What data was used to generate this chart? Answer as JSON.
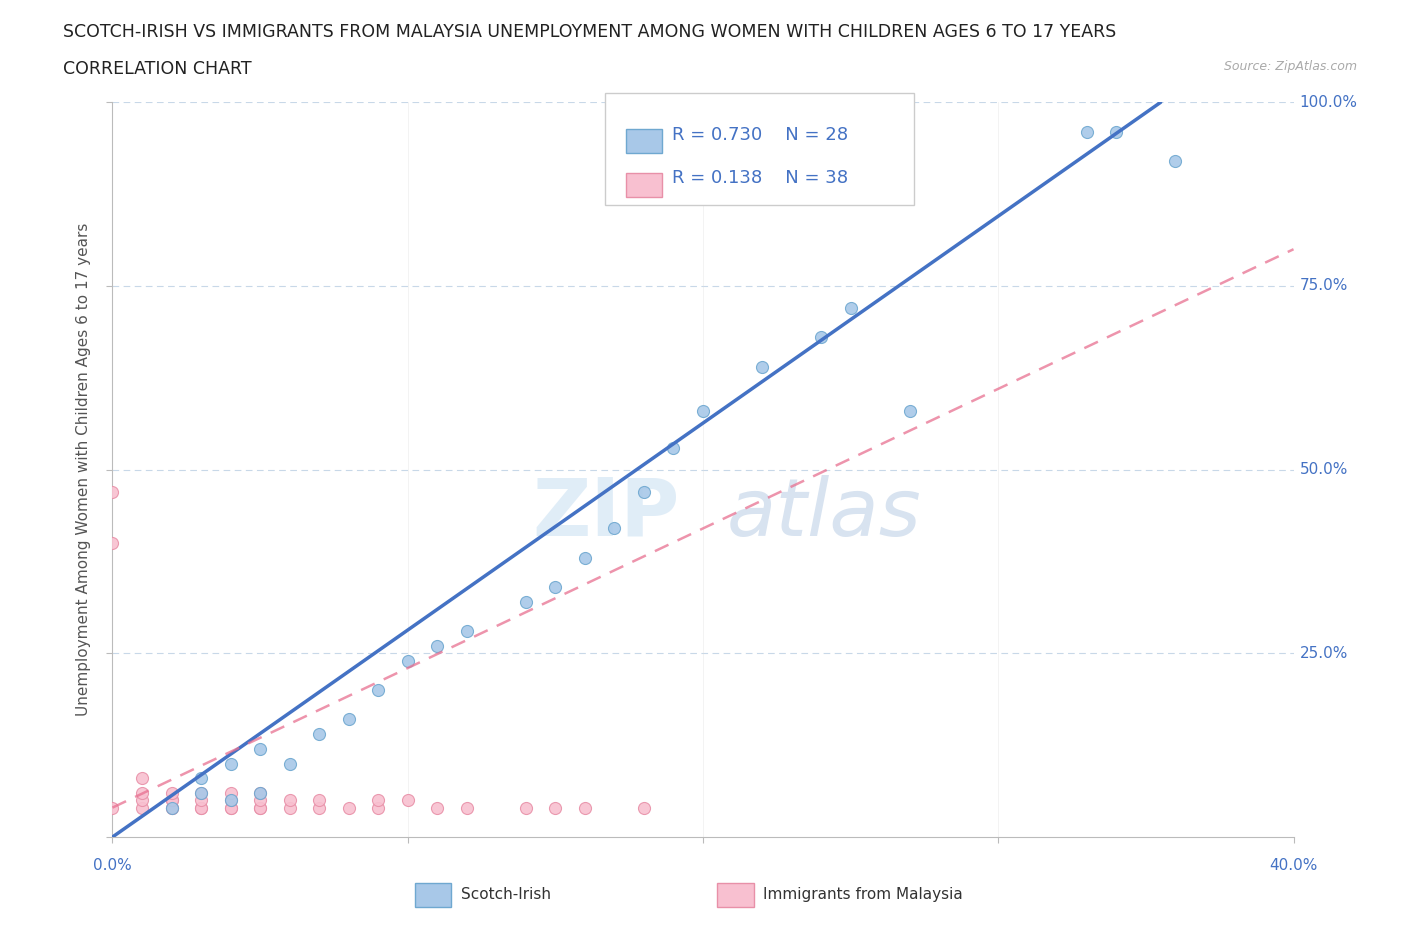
{
  "title_line1": "SCOTCH-IRISH VS IMMIGRANTS FROM MALAYSIA UNEMPLOYMENT AMONG WOMEN WITH CHILDREN AGES 6 TO 17 YEARS",
  "title_line2": "CORRELATION CHART",
  "source_text": "Source: ZipAtlas.com",
  "ylabel": "Unemployment Among Women with Children Ages 6 to 17 years",
  "xlim": [
    0.0,
    0.4
  ],
  "ylim": [
    0.0,
    1.0
  ],
  "xticks": [
    0.0,
    0.1,
    0.2,
    0.3,
    0.4
  ],
  "xticklabels": [
    "0.0%",
    "",
    "",
    "",
    "40.0%"
  ],
  "yticks": [
    0.0,
    0.25,
    0.5,
    0.75,
    1.0
  ],
  "yticklabels": [
    "",
    "25.0%",
    "50.0%",
    "75.0%",
    "100.0%"
  ],
  "scotch_irish": {
    "x": [
      0.02,
      0.03,
      0.03,
      0.04,
      0.04,
      0.05,
      0.05,
      0.06,
      0.07,
      0.08,
      0.09,
      0.1,
      0.11,
      0.12,
      0.14,
      0.15,
      0.16,
      0.17,
      0.18,
      0.19,
      0.2,
      0.22,
      0.24,
      0.25,
      0.27,
      0.33,
      0.34,
      0.36
    ],
    "y": [
      0.04,
      0.06,
      0.08,
      0.05,
      0.1,
      0.06,
      0.12,
      0.1,
      0.14,
      0.16,
      0.2,
      0.24,
      0.26,
      0.28,
      0.32,
      0.34,
      0.38,
      0.42,
      0.47,
      0.53,
      0.58,
      0.64,
      0.68,
      0.72,
      0.58,
      0.96,
      0.96,
      0.92
    ],
    "color": "#a8c8e8",
    "edge_color": "#6fa8d0",
    "R": 0.73,
    "N": 28,
    "trend_color": "#4472c4",
    "trend_x": [
      0.0,
      0.355
    ],
    "trend_y": [
      0.0,
      1.0
    ]
  },
  "malaysia": {
    "x": [
      0.0,
      0.0,
      0.0,
      0.01,
      0.01,
      0.01,
      0.01,
      0.02,
      0.02,
      0.02,
      0.02,
      0.02,
      0.03,
      0.03,
      0.03,
      0.03,
      0.04,
      0.04,
      0.04,
      0.04,
      0.05,
      0.05,
      0.05,
      0.05,
      0.06,
      0.06,
      0.07,
      0.07,
      0.08,
      0.09,
      0.09,
      0.1,
      0.11,
      0.12,
      0.14,
      0.15,
      0.16,
      0.18
    ],
    "y": [
      0.47,
      0.4,
      0.04,
      0.04,
      0.05,
      0.06,
      0.08,
      0.04,
      0.04,
      0.05,
      0.05,
      0.06,
      0.04,
      0.04,
      0.05,
      0.06,
      0.04,
      0.04,
      0.05,
      0.06,
      0.04,
      0.04,
      0.05,
      0.06,
      0.04,
      0.05,
      0.04,
      0.05,
      0.04,
      0.04,
      0.05,
      0.05,
      0.04,
      0.04,
      0.04,
      0.04,
      0.04,
      0.04
    ],
    "color": "#f8c0d0",
    "edge_color": "#e890a8",
    "R": 0.138,
    "N": 38,
    "trend_color": "#e87090",
    "trend_x": [
      0.0,
      0.4
    ],
    "trend_y": [
      0.04,
      0.8
    ]
  },
  "legend_text_color": "#4472c4",
  "watermark_zip": "ZIP",
  "watermark_atlas": "atlas",
  "background_color": "#ffffff",
  "grid_color": "#c8d8e8",
  "title_fontsize": 12.5,
  "subtitle_fontsize": 12.5,
  "source_fontsize": 9,
  "axis_label_fontsize": 11,
  "tick_fontsize": 11,
  "legend_fontsize": 13,
  "marker_size": 75
}
